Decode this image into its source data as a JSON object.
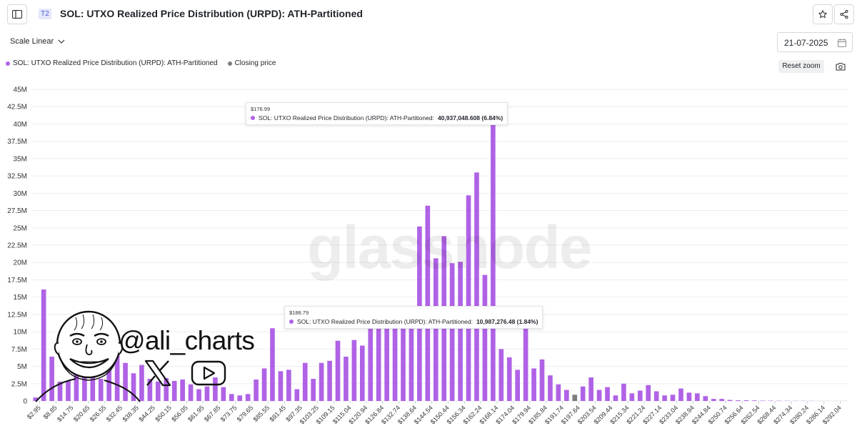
{
  "header": {
    "tier_badge": "T2",
    "title": "SOL: UTXO Realized Price Distribution (URPD): ATH-Partitioned"
  },
  "toolbar": {
    "scale_label": "Scale Linear",
    "date_value": "21-07-2025",
    "reset_zoom_label": "Reset zoom"
  },
  "legend": [
    {
      "label": "SOL: UTXO Realized Price Distribution (URPD): ATH-Partitioned",
      "color": "#b062e6"
    },
    {
      "label": "Closing price",
      "color": "#7d7d7d"
    }
  ],
  "tooltips": [
    {
      "x_label": "$176.99",
      "series": "SOL: UTXO Realized Price Distribution (URPD): ATH-Partitioned:",
      "value": "40,937,048.608 (6.84%)"
    },
    {
      "x_label": "$188.79",
      "series": "SOL: UTXO Realized Price Distribution (URPD): ATH-Partitioned:",
      "value": "10,987,276.48 (1.84%)"
    }
  ],
  "watermark": "glassnode",
  "overlay": {
    "handle": "@ali_charts"
  },
  "colors": {
    "bar": "#b062e6",
    "closing_price_bar": "#7d7d7d",
    "grid": "#eceef1",
    "axis_text": "#333333"
  },
  "icons": [
    "sidebar-toggle-icon",
    "star-icon",
    "share-icon",
    "chevron-down-icon",
    "calendar-icon",
    "camera-icon",
    "x-logo-icon",
    "youtube-icon"
  ],
  "chart_data": {
    "type": "bar",
    "ylim": [
      0,
      45000000
    ],
    "y_ticks": [
      "0",
      "2.5M",
      "5M",
      "7.5M",
      "10M",
      "12.5M",
      "15M",
      "17.5M",
      "20M",
      "22.5M",
      "25M",
      "27.5M",
      "30M",
      "32.5M",
      "35M",
      "37.5M",
      "40M",
      "42.5M",
      "45M"
    ],
    "x_tick_labels": [
      "$2.95",
      "$8.85",
      "$14.75",
      "$20.65",
      "$26.55",
      "$32.45",
      "$38.35",
      "$44.25",
      "$50.15",
      "$56.05",
      "$61.95",
      "$67.85",
      "$73.75",
      "$79.65",
      "$85.55",
      "$91.45",
      "$97.35",
      "$103.25",
      "$109.15",
      "$115.04",
      "$120.94",
      "$126.84",
      "$132.74",
      "$138.64",
      "$144.54",
      "$150.44",
      "$156.34",
      "$162.24",
      "$168.14",
      "$174.04",
      "$179.94",
      "$185.84",
      "$191.74",
      "$197.64",
      "$203.54",
      "$209.44",
      "$215.34",
      "$221.24",
      "$227.14",
      "$233.04",
      "$238.94",
      "$244.84",
      "$250.74",
      "$256.64",
      "$262.54",
      "$268.44",
      "$274.34",
      "$280.24",
      "$286.14",
      "$292.04"
    ],
    "closing_price_index": 66,
    "values_millions": [
      0.5,
      16.1,
      6.4,
      2.8,
      2.9,
      10.0,
      3.5,
      6.1,
      3.2,
      5.3,
      7.5,
      5.5,
      4.0,
      5.2,
      3.2,
      2.8,
      3.3,
      2.9,
      3.1,
      2.4,
      1.7,
      2.1,
      3.4,
      2.0,
      1.0,
      0.8,
      1.0,
      3.1,
      4.7,
      10.5,
      4.3,
      4.5,
      1.7,
      5.5,
      3.2,
      5.5,
      5.8,
      8.7,
      6.4,
      8.8,
      8.0,
      10.5,
      10.5,
      10.5,
      10.5,
      10.5,
      10.5,
      25.2,
      28.2,
      20.6,
      23.8,
      19.9,
      20.1,
      29.7,
      33.0,
      18.2,
      40.9,
      7.5,
      6.3,
      4.5,
      11.0,
      4.7,
      6.0,
      3.7,
      2.4,
      1.6,
      0.9,
      2.1,
      3.4,
      1.6,
      2.0,
      0.8,
      2.5,
      1.1,
      1.5,
      2.3,
      1.4,
      0.8,
      0.9,
      1.8,
      1.2,
      1.1,
      0.7,
      0.3,
      0.3,
      0.15,
      0.1,
      0.1,
      0.08,
      0.05,
      0.05,
      0.04,
      0.03,
      0.02,
      0.02,
      0.02,
      0.01,
      0.01,
      0.01,
      0.01
    ]
  }
}
